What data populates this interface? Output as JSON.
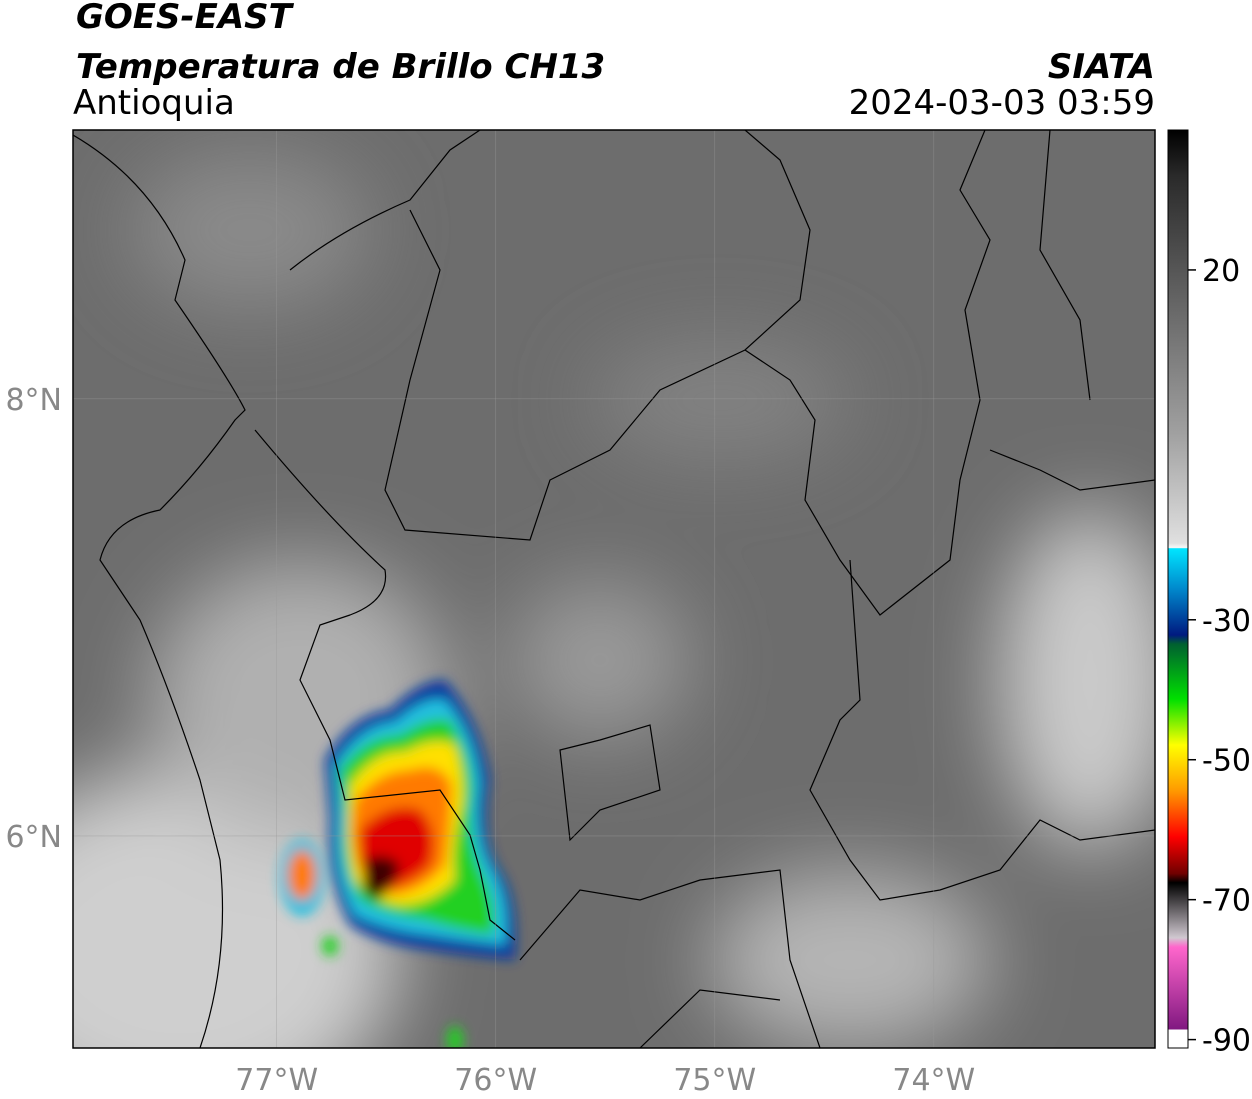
{
  "header": {
    "title": "GOES-EAST",
    "subtitle": "Temperatura de Brillo CH13",
    "region": "Antioquia",
    "source": "SIATA",
    "timestamp": "2024-03-03 03:59"
  },
  "map": {
    "xlim": [
      -77.93,
      -72.99
    ],
    "ylim": [
      5.03,
      9.23
    ],
    "xticks": [
      {
        "value": -77,
        "label": "77°W"
      },
      {
        "value": -76,
        "label": "76°W"
      },
      {
        "value": -75,
        "label": "75°W"
      },
      {
        "value": -74,
        "label": "74°W"
      }
    ],
    "yticks": [
      {
        "value": 6,
        "label": "6°N"
      },
      {
        "value": 8,
        "label": "8°N"
      }
    ],
    "grid": true
  },
  "colorbar": {
    "lim": [
      -91.2,
      40
    ],
    "ticks": [
      20,
      -30,
      -50,
      -70,
      -90
    ]
  }
}
